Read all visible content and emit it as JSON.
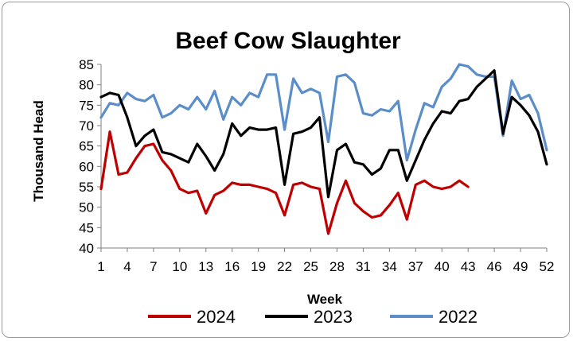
{
  "chart_data": {
    "type": "line",
    "title": "Beef Cow Slaughter",
    "xlabel": "Week",
    "ylabel": "Thousand Head",
    "ylim": [
      40,
      85
    ],
    "yticks": [
      40,
      45,
      50,
      55,
      60,
      65,
      70,
      75,
      80,
      85
    ],
    "xlim": [
      1,
      52
    ],
    "xticks": [
      1,
      4,
      7,
      10,
      13,
      16,
      19,
      22,
      25,
      28,
      31,
      34,
      37,
      40,
      43,
      46,
      49,
      52
    ],
    "grid": false,
    "legend_position": "bottom",
    "series": [
      {
        "name": "2024",
        "color": "#c00000",
        "x": [
          1,
          2,
          3,
          4,
          5,
          6,
          7,
          8,
          9,
          10,
          11,
          12,
          13,
          14,
          15,
          16,
          17,
          18,
          19,
          20,
          21,
          22,
          23,
          24,
          25,
          26,
          27,
          28,
          29,
          30,
          31,
          32,
          33,
          34,
          35,
          36,
          37,
          38,
          39,
          40,
          41,
          42,
          43
        ],
        "values": [
          54.5,
          68.5,
          58,
          58.5,
          62,
          65,
          65.5,
          61.5,
          59,
          54.5,
          53.5,
          54,
          48.5,
          53,
          54,
          56,
          55.5,
          55.5,
          55,
          54.5,
          53.5,
          48,
          55.5,
          56,
          55,
          54.5,
          43.5,
          51,
          56.5,
          51,
          49,
          47.5,
          48,
          50.5,
          53.5,
          47,
          55.5,
          56.5,
          55,
          54.5,
          55,
          56.5,
          55
        ]
      },
      {
        "name": "2023",
        "color": "#000000",
        "x": [
          1,
          2,
          3,
          4,
          5,
          6,
          7,
          8,
          9,
          10,
          11,
          12,
          13,
          14,
          15,
          16,
          17,
          18,
          19,
          20,
          21,
          22,
          23,
          24,
          25,
          26,
          27,
          28,
          29,
          30,
          31,
          32,
          33,
          34,
          35,
          36,
          37,
          38,
          39,
          40,
          41,
          42,
          43,
          44,
          45,
          46,
          47,
          48,
          49,
          50,
          51,
          52
        ],
        "values": [
          77,
          78,
          77.5,
          72,
          65,
          67.5,
          69,
          63.5,
          63,
          62,
          61,
          65.5,
          62.5,
          59,
          63,
          70.5,
          67.5,
          69.5,
          69,
          69,
          69.5,
          55.5,
          68,
          68.5,
          69.5,
          72,
          52.5,
          64,
          65.5,
          61,
          60.5,
          58,
          59.5,
          64,
          64,
          56.5,
          61.5,
          66.5,
          70.5,
          73.5,
          73,
          76,
          76.5,
          79.5,
          81.5,
          83.5,
          68,
          77,
          75,
          72.5,
          68.5,
          60.5
        ]
      },
      {
        "name": "2022",
        "color": "#5b8ec9",
        "x": [
          1,
          2,
          3,
          4,
          5,
          6,
          7,
          8,
          9,
          10,
          11,
          12,
          13,
          14,
          15,
          16,
          17,
          18,
          19,
          20,
          21,
          22,
          23,
          24,
          25,
          26,
          27,
          28,
          29,
          30,
          31,
          32,
          33,
          34,
          35,
          36,
          37,
          38,
          39,
          40,
          41,
          42,
          43,
          44,
          45,
          46,
          47,
          48,
          49,
          50,
          51,
          52
        ],
        "values": [
          72,
          75.5,
          75,
          78,
          76.5,
          76,
          77.5,
          72,
          73,
          75,
          74,
          77,
          74,
          78.5,
          71.5,
          77,
          75,
          78,
          77,
          82.5,
          82.5,
          69,
          81.5,
          78,
          79,
          78,
          66,
          82,
          82.5,
          80.5,
          73,
          72.5,
          74,
          73.5,
          76,
          61.5,
          69,
          75.5,
          74.5,
          79.5,
          81.5,
          85,
          84.5,
          82.5,
          82,
          82,
          67.5,
          81,
          76.5,
          77.5,
          73,
          64
        ]
      }
    ]
  }
}
